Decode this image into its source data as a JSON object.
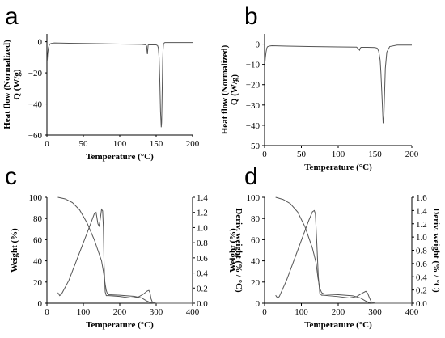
{
  "chart_data": [
    {
      "panel": "a",
      "type": "line",
      "xlabel": "Temperature (°C)",
      "ylabel_lines": [
        "Heat flow (Normalized)",
        "Q (W/g)"
      ],
      "xlim": [
        0,
        200
      ],
      "ylim": [
        -60,
        5
      ],
      "xticks": [
        0,
        50,
        100,
        150,
        200
      ],
      "yticks": [
        0,
        -20,
        -40,
        -60
      ],
      "ytick_labels": [
        "0",
        "−20",
        "−40",
        "−60"
      ],
      "grid": false,
      "series": [
        {
          "x": [
            0.5,
            1,
            2,
            3,
            4,
            6,
            8,
            10,
            30,
            60,
            100,
            130,
            136,
            137,
            137.5,
            138,
            138.5,
            139,
            139.5,
            140,
            145,
            150,
            152,
            153,
            154,
            155,
            156,
            157,
            157.5,
            158,
            158.5,
            159,
            159.5,
            160,
            161,
            162,
            165,
            180,
            200
          ],
          "y": [
            -12,
            -8,
            -4,
            -2.5,
            -1.5,
            -1.1,
            -1,
            -0.8,
            -1,
            -1.2,
            -1.5,
            -1.7,
            -2,
            -3,
            -6,
            -8,
            -5,
            -2.2,
            -2,
            -2,
            -2,
            -2,
            -2.5,
            -4,
            -10,
            -25,
            -45,
            -55,
            -52,
            -40,
            -25,
            -12,
            -5,
            -2,
            -0.8,
            -0.5,
            -0.5,
            -0.5,
            -0.5
          ]
        }
      ]
    },
    {
      "panel": "b",
      "type": "line",
      "xlabel": "Temperature (°C)",
      "ylabel_lines": [
        "Heat flow (Normalized)",
        "Q (W/g)"
      ],
      "xlim": [
        0,
        200
      ],
      "ylim": [
        -50,
        5
      ],
      "xticks": [
        0,
        50,
        100,
        150,
        200
      ],
      "yticks": [
        0,
        -10,
        -20,
        -30,
        -40,
        -50
      ],
      "ytick_labels": [
        "0",
        "−10",
        "−20",
        "−30",
        "−40",
        "−50"
      ],
      "grid": false,
      "series": [
        {
          "x": [
            0.5,
            1,
            2,
            3,
            4,
            6,
            8,
            10,
            30,
            60,
            100,
            125,
            128,
            129,
            130,
            131,
            135,
            140,
            150,
            153,
            155,
            157,
            158,
            159,
            160,
            161,
            162,
            163,
            164,
            166,
            170,
            180,
            200
          ],
          "y": [
            -9,
            -7,
            -4,
            -2,
            -1.3,
            -1,
            -0.9,
            -0.8,
            -1,
            -1.2,
            -1.4,
            -1.5,
            -2.5,
            -3,
            -2,
            -1.6,
            -1.6,
            -1.6,
            -1.7,
            -2,
            -3.5,
            -8,
            -14,
            -22,
            -30,
            -39,
            -36,
            -24,
            -12,
            -4,
            -1.2,
            -0.5,
            -0.5
          ]
        }
      ]
    },
    {
      "panel": "c",
      "type": "line",
      "xlabel": "Temperature (°C)",
      "ylabel": "Weight (%)",
      "y2label": "Deriv. weight (% / °C)",
      "xlim": [
        0,
        400
      ],
      "ylim": [
        0,
        100
      ],
      "y2lim": [
        0,
        1.4
      ],
      "xticks": [
        0,
        100,
        200,
        300,
        400
      ],
      "yticks": [
        0,
        20,
        40,
        60,
        80,
        100
      ],
      "y2ticks": [
        0.0,
        0.2,
        0.4,
        0.6,
        0.8,
        1.0,
        1.2,
        1.4
      ],
      "y2tick_labels": [
        "0.0",
        "0.2",
        "0.4",
        "0.6",
        "0.8",
        "1.0",
        "1.2",
        "1.4"
      ],
      "grid": false,
      "series": [
        {
          "axis": "left",
          "x": [
            30,
            50,
            70,
            90,
            110,
            130,
            140,
            150,
            155,
            160,
            163,
            166,
            170,
            200,
            240,
            260,
            275,
            285,
            300,
            400
          ],
          "y": [
            100,
            98.5,
            95,
            88,
            76,
            60,
            50,
            40,
            30,
            18,
            12,
            9,
            8,
            7.5,
            6.5,
            5,
            2,
            0.5,
            0,
            0
          ]
        },
        {
          "axis": "right",
          "x": [
            30,
            35,
            40,
            60,
            80,
            100,
            120,
            130,
            135,
            140,
            143,
            146,
            150,
            153,
            155,
            157,
            160,
            163,
            166,
            170,
            200,
            230,
            250,
            265,
            275,
            280,
            283,
            286,
            290,
            300,
            400
          ],
          "y": [
            0.14,
            0.1,
            0.12,
            0.3,
            0.55,
            0.8,
            1.05,
            1.18,
            1.2,
            1.05,
            1.02,
            1.1,
            1.24,
            1.22,
            1.0,
            0.5,
            0.15,
            0.1,
            0.1,
            0.1,
            0.09,
            0.07,
            0.08,
            0.12,
            0.16,
            0.17,
            0.14,
            0.06,
            0.01,
            0,
            0
          ]
        }
      ]
    },
    {
      "panel": "d",
      "type": "line",
      "xlabel": "Temperature (°C)",
      "ylabel": "Weight (%)",
      "y2label": "Deriv. weight (% / °C)",
      "xlim": [
        0,
        400
      ],
      "ylim": [
        0,
        100
      ],
      "y2lim": [
        0,
        1.6
      ],
      "xticks": [
        0,
        100,
        200,
        300,
        400
      ],
      "yticks": [
        0,
        20,
        40,
        60,
        80,
        100
      ],
      "y2ticks": [
        0.0,
        0.2,
        0.4,
        0.6,
        0.8,
        1.0,
        1.2,
        1.4,
        1.6
      ],
      "y2tick_labels": [
        "0.0",
        "0.2",
        "0.4",
        "0.6",
        "0.8",
        "1.0",
        "1.2",
        "1.4",
        "1.6"
      ],
      "grid": false,
      "series": [
        {
          "axis": "left",
          "x": [
            30,
            50,
            70,
            90,
            110,
            130,
            140,
            145,
            150,
            155,
            160,
            170,
            200,
            240,
            260,
            275,
            285,
            300,
            400
          ],
          "y": [
            100,
            98,
            94,
            86,
            72,
            52,
            38,
            24,
            14,
            10,
            9,
            8.5,
            8,
            7,
            5,
            2,
            0.5,
            0,
            0
          ]
        },
        {
          "axis": "right",
          "x": [
            30,
            35,
            40,
            60,
            80,
            100,
            120,
            130,
            135,
            138,
            142,
            146,
            150,
            155,
            160,
            200,
            230,
            250,
            265,
            275,
            280,
            285,
            290,
            300,
            400
          ],
          "y": [
            0.12,
            0.08,
            0.1,
            0.35,
            0.65,
            0.95,
            1.25,
            1.38,
            1.4,
            1.35,
            0.9,
            0.4,
            0.15,
            0.12,
            0.12,
            0.1,
            0.08,
            0.1,
            0.15,
            0.18,
            0.15,
            0.08,
            0.02,
            0,
            0
          ]
        }
      ]
    }
  ]
}
